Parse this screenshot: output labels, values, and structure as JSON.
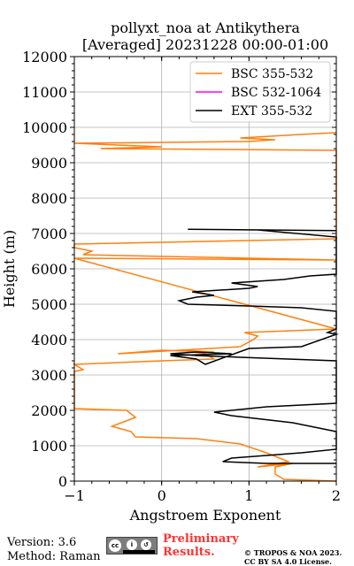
{
  "title_line1": "pollyxt_noa at Antikythera",
  "title_line2": "[Averaged] 20231228 00:00-01:00",
  "chart_data": {
    "type": "line",
    "xlabel": "Angstroem Exponent",
    "ylabel": "Height (m)",
    "xlim": [
      -1,
      2
    ],
    "ylim": [
      0,
      12000
    ],
    "xticks": [
      -1,
      0,
      1,
      2
    ],
    "xtick_labels": [
      "−1",
      "0",
      "1",
      "2"
    ],
    "yticks": [
      0,
      1000,
      2000,
      3000,
      4000,
      5000,
      6000,
      7000,
      8000,
      9000,
      10000,
      11000,
      12000
    ],
    "ytick_labels": [
      "0",
      "1000",
      "2000",
      "3000",
      "4000",
      "5000",
      "6000",
      "7000",
      "8000",
      "9000",
      "10000",
      "11000",
      "12000"
    ],
    "grid": true,
    "legend_position": "top-right",
    "series": [
      {
        "name": "BSC 355-532",
        "color": "#ff7f0e",
        "points": [
          [
            2.0,
            0
          ],
          [
            1.4,
            50
          ],
          [
            1.3,
            200
          ],
          [
            1.3,
            400
          ],
          [
            1.5,
            500
          ],
          [
            1.3,
            450
          ],
          [
            1.1,
            400
          ],
          [
            1.45,
            550
          ],
          [
            1.2,
            800
          ],
          [
            0.9,
            1050
          ],
          [
            0.4,
            1200
          ],
          [
            -0.3,
            1250
          ],
          [
            -0.35,
            1400
          ],
          [
            -0.57,
            1550
          ],
          [
            -0.3,
            1800
          ],
          [
            -0.4,
            2000
          ],
          [
            -1.0,
            2050
          ],
          [
            -1.0,
            3100
          ],
          [
            -0.9,
            3150
          ],
          [
            -1.0,
            3300
          ],
          [
            0.0,
            3400
          ],
          [
            0.6,
            3450
          ],
          [
            0.5,
            3600
          ],
          [
            0.2,
            3700
          ],
          [
            0.6,
            3650
          ],
          [
            0.0,
            3700
          ],
          [
            -0.5,
            3600
          ],
          [
            0.9,
            3800
          ],
          [
            1.05,
            4000
          ],
          [
            1.1,
            4100
          ],
          [
            0.95,
            4200
          ],
          [
            2.0,
            4300
          ],
          [
            -1.0,
            6300
          ],
          [
            2.0,
            6250
          ],
          [
            -0.9,
            6400
          ],
          [
            -0.8,
            6500
          ],
          [
            -1.0,
            6600
          ],
          [
            -1.0,
            6700
          ],
          [
            2.0,
            6850
          ],
          [
            2.0,
            9350
          ],
          [
            -0.7,
            9400
          ],
          [
            0.0,
            9450
          ],
          [
            -1.0,
            9550
          ],
          [
            1.0,
            9600
          ],
          [
            1.3,
            9650
          ],
          [
            0.9,
            9700
          ],
          [
            1.6,
            9800
          ],
          [
            2.0,
            9850
          ]
        ]
      },
      {
        "name": "BSC 532-1064",
        "color": "#ff00ff",
        "points": []
      },
      {
        "name": "EXT 355-532",
        "color": "#000000",
        "points": [
          [
            2.0,
            500
          ],
          [
            1.2,
            500
          ],
          [
            0.7,
            550
          ],
          [
            0.8,
            650
          ],
          [
            1.6,
            800
          ],
          [
            2.0,
            900
          ],
          [
            2.0,
            1400
          ],
          [
            1.5,
            1650
          ],
          [
            0.8,
            1850
          ],
          [
            0.6,
            1950
          ],
          [
            1.2,
            2100
          ],
          [
            2.0,
            2200
          ],
          [
            2.0,
            3400
          ],
          [
            0.9,
            3500
          ],
          [
            0.4,
            3550
          ],
          [
            0.1,
            3600
          ],
          [
            0.4,
            3650
          ],
          [
            0.8,
            3600
          ],
          [
            0.1,
            3550
          ],
          [
            0.4,
            3450
          ],
          [
            0.5,
            3300
          ],
          [
            1.0,
            3750
          ],
          [
            1.6,
            3800
          ],
          [
            2.0,
            4150
          ],
          [
            1.9,
            4200
          ],
          [
            2.0,
            4300
          ],
          [
            2.0,
            4800
          ],
          [
            1.6,
            4900
          ],
          [
            1.0,
            4950
          ],
          [
            0.3,
            5000
          ],
          [
            0.2,
            5100
          ],
          [
            0.4,
            5200
          ],
          [
            0.6,
            5250
          ],
          [
            0.35,
            5350
          ],
          [
            1.0,
            5450
          ],
          [
            1.1,
            5500
          ],
          [
            0.8,
            5600
          ],
          [
            1.4,
            5700
          ],
          [
            1.7,
            5800
          ],
          [
            2.0,
            5850
          ],
          [
            2.0,
            6900
          ],
          [
            1.1,
            7100
          ],
          [
            0.3,
            7120
          ],
          [
            2.0,
            7080
          ]
        ]
      }
    ]
  },
  "footer": {
    "version": "Version: 3.6",
    "method": "Method: Raman",
    "preliminary_line1": "Preliminary",
    "preliminary_line2": "Results.",
    "copyright_line1": "© TROPOS & NOA 2023.",
    "copyright_line2": "CC BY SA 4.0 License."
  }
}
